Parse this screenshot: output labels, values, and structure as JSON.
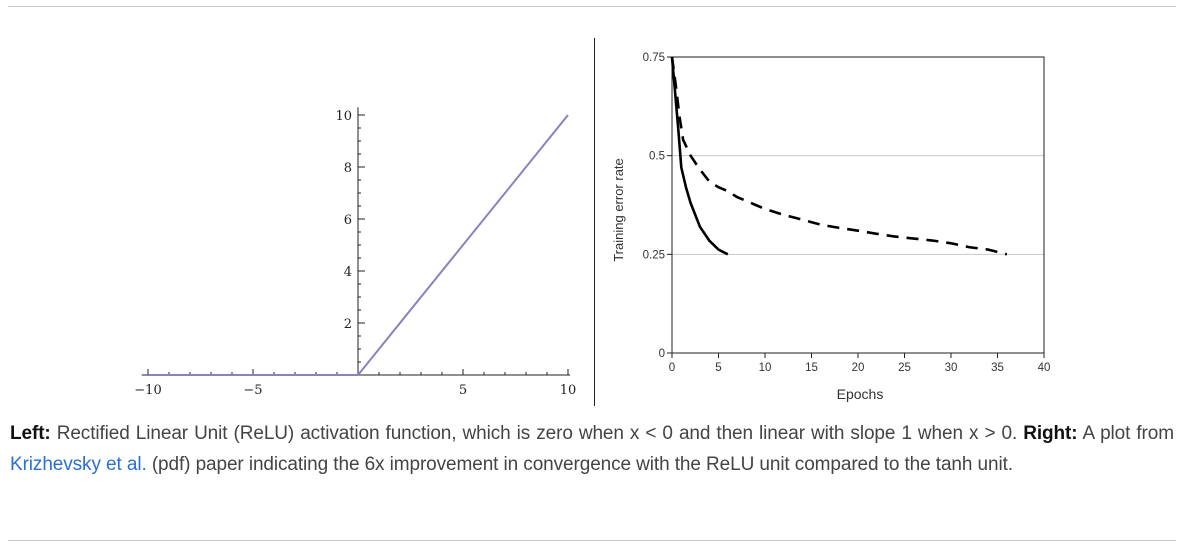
{
  "caption": {
    "left_label": "Left:",
    "left_text": " Rectified Linear Unit (ReLU) activation function, which is zero when x < 0 and then linear with slope 1 when x > 0. ",
    "right_label": "Right:",
    "right_text_1": " A plot from ",
    "link_text": "Krizhevsky et al.",
    "right_text_2": " (pdf) paper indicating the 6x improvement in convergence with the ReLU unit compared to the tanh unit."
  },
  "chart_data": [
    {
      "type": "line",
      "title": "",
      "xlabel": "",
      "ylabel": "",
      "xlim": [
        -10,
        10
      ],
      "ylim": [
        0,
        10
      ],
      "x_ticks": [
        -10,
        -5,
        5,
        10
      ],
      "y_ticks": [
        2,
        4,
        6,
        8,
        10
      ],
      "grid": false,
      "colors": {
        "line": "#8a82c0",
        "axis": "#222222"
      },
      "series": [
        {
          "x": [
            -10,
            0,
            10
          ],
          "y": [
            0,
            0,
            10
          ]
        }
      ]
    },
    {
      "type": "line",
      "title": "",
      "xlabel": "Epochs",
      "ylabel": "Training error rate",
      "xlim": [
        0,
        40
      ],
      "ylim": [
        0,
        0.75
      ],
      "x_ticks": [
        0,
        5,
        10,
        15,
        20,
        25,
        30,
        35,
        40
      ],
      "y_ticks": [
        0,
        0.25,
        0.5,
        0.75
      ],
      "y_tick_labels": [
        "0",
        "0.25",
        "0.5",
        "0.75"
      ],
      "grid": true,
      "gridlines_y": [
        0.25,
        0.5
      ],
      "colors": {
        "line": "#000000",
        "grid": "#c8c8c8"
      },
      "series": [
        {
          "style": "solid",
          "x": [
            0,
            0.3,
            0.7,
            1.0,
            1.5,
            2.0,
            3.0,
            4.0,
            5.0,
            6.0
          ],
          "y": [
            0.75,
            0.67,
            0.56,
            0.47,
            0.42,
            0.38,
            0.32,
            0.285,
            0.262,
            0.25
          ]
        },
        {
          "style": "dashed",
          "x": [
            0,
            0.4,
            0.8,
            1.2,
            2,
            3,
            4,
            5,
            6,
            7,
            8,
            9,
            10,
            12,
            14,
            16,
            18,
            20,
            22,
            24,
            26,
            28,
            30,
            32,
            34,
            36
          ],
          "y": [
            0.75,
            0.68,
            0.6,
            0.54,
            0.5,
            0.465,
            0.435,
            0.42,
            0.41,
            0.395,
            0.385,
            0.375,
            0.365,
            0.35,
            0.338,
            0.325,
            0.317,
            0.31,
            0.302,
            0.295,
            0.29,
            0.285,
            0.278,
            0.268,
            0.262,
            0.25
          ]
        }
      ]
    }
  ]
}
